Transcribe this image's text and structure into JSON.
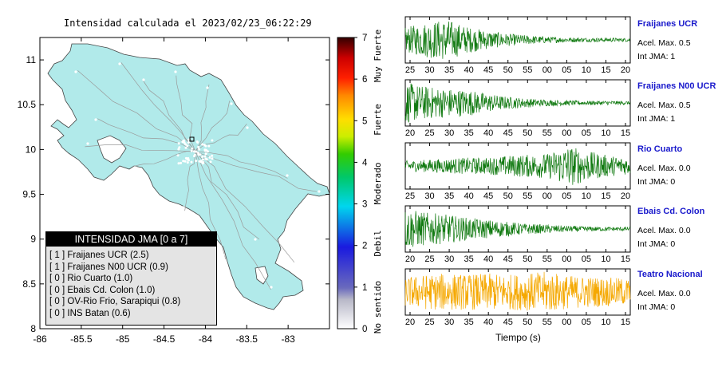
{
  "map": {
    "title": "Intensidad calculada el 2023/02/23_06:22:29",
    "x_ticks": [
      "-86",
      "-85.5",
      "-85",
      "-84.5",
      "-84",
      "-83.5",
      "-83"
    ],
    "y_ticks": [
      "11",
      "10.5",
      "10",
      "9.5",
      "9",
      "8.5",
      "8"
    ],
    "xlim": [
      -86,
      -82.5
    ],
    "ylim": [
      8,
      11.25
    ]
  },
  "legend": {
    "title": "INTENSIDAD JMA [0 a 7]",
    "items": [
      "[ 1 ]  Fraijanes UCR (2.5)",
      "[ 1 ]  Fraijanes N00 UCR (0.9)",
      "[ 0 ]  Rio Cuarto (1.0)",
      "[ 0 ]  Ebais Cd. Colon (1.0)",
      "[ 0 ]  OV-Rio Frio, Sarapiqui (0.8)",
      "[ 0 ]  INS Batan (0.6)"
    ]
  },
  "colorbar": {
    "ticks": [
      "0",
      "1",
      "2",
      "3",
      "4",
      "5",
      "6",
      "7"
    ],
    "labels": [
      "No sentido",
      "Debil",
      "Moderado",
      "Fuerte",
      "Muy Fuerte"
    ]
  },
  "stations": [
    {
      "name": "Fraijanes UCR",
      "acc": "Acel. Max. 0.5",
      "int": "Int JMA: 1",
      "color": "#117a11",
      "ticks": [
        "25",
        "30",
        "35",
        "40",
        "45",
        "50",
        "55",
        "00",
        "05",
        "10",
        "15",
        "20"
      ]
    },
    {
      "name": "Fraijanes N00 UCR",
      "acc": "Acel. Max. 0.5",
      "int": "Int JMA: 1",
      "color": "#117a11",
      "ticks": [
        "20",
        "25",
        "30",
        "35",
        "40",
        "45",
        "50",
        "55",
        "00",
        "05",
        "10",
        "15"
      ]
    },
    {
      "name": "Rio Cuarto",
      "acc": "Acel. Max. 0.0",
      "int": "Int JMA: 0",
      "color": "#117a11",
      "ticks": [
        "25",
        "30",
        "35",
        "40",
        "45",
        "50",
        "55",
        "00",
        "05",
        "10",
        "15",
        "20"
      ]
    },
    {
      "name": "Ebais Cd. Colon",
      "acc": "Acel. Max. 0.0",
      "int": "Int JMA: 0",
      "color": "#117a11",
      "ticks": [
        "20",
        "25",
        "30",
        "35",
        "40",
        "45",
        "50",
        "55",
        "00",
        "05",
        "10",
        "15"
      ]
    },
    {
      "name": "Teatro Nacional",
      "acc": "Acel. Max. 0.0",
      "int": "Int JMA: 0",
      "color": "#f5a800",
      "ticks": [
        "20",
        "25",
        "30",
        "35",
        "40",
        "45",
        "50",
        "55",
        "00",
        "05",
        "10",
        "15"
      ]
    }
  ],
  "time_axis_label": "Tiempo (s)",
  "chart_data": [
    {
      "type": "map",
      "title": "Intensidad calculada el 2023/02/23_06:22:29",
      "xlim": [
        -86,
        -82.5
      ],
      "ylim": [
        8,
        11.25
      ],
      "marker": {
        "lon": -84.15,
        "lat": 10.15
      }
    },
    {
      "type": "line",
      "name": "Fraijanes UCR",
      "envelope": [
        0.6,
        0.85,
        1.0,
        0.65,
        0.45,
        0.3,
        0.22,
        0.15,
        0.12,
        0.1,
        0.1,
        0.08
      ]
    },
    {
      "type": "line",
      "name": "Fraijanes N00 UCR",
      "envelope": [
        1.0,
        0.8,
        0.7,
        0.65,
        0.45,
        0.3,
        0.22,
        0.15,
        0.12,
        0.1,
        0.1,
        0.08
      ]
    },
    {
      "type": "line",
      "name": "Rio Cuarto",
      "envelope": [
        0.25,
        0.3,
        0.35,
        0.4,
        0.4,
        0.5,
        0.55,
        0.6,
        1.0,
        0.7,
        0.5,
        0.4
      ]
    },
    {
      "type": "line",
      "name": "Ebais Cd. Colon",
      "envelope": [
        1.0,
        0.8,
        0.7,
        0.55,
        0.45,
        0.35,
        0.25,
        0.2,
        0.15,
        0.12,
        0.1,
        0.1
      ]
    },
    {
      "type": "line",
      "name": "Teatro Nacional",
      "envelope": [
        0.7,
        0.85,
        0.9,
        0.85,
        0.9,
        0.85,
        0.9,
        1.0,
        0.8,
        0.75,
        0.7,
        0.65
      ]
    }
  ]
}
